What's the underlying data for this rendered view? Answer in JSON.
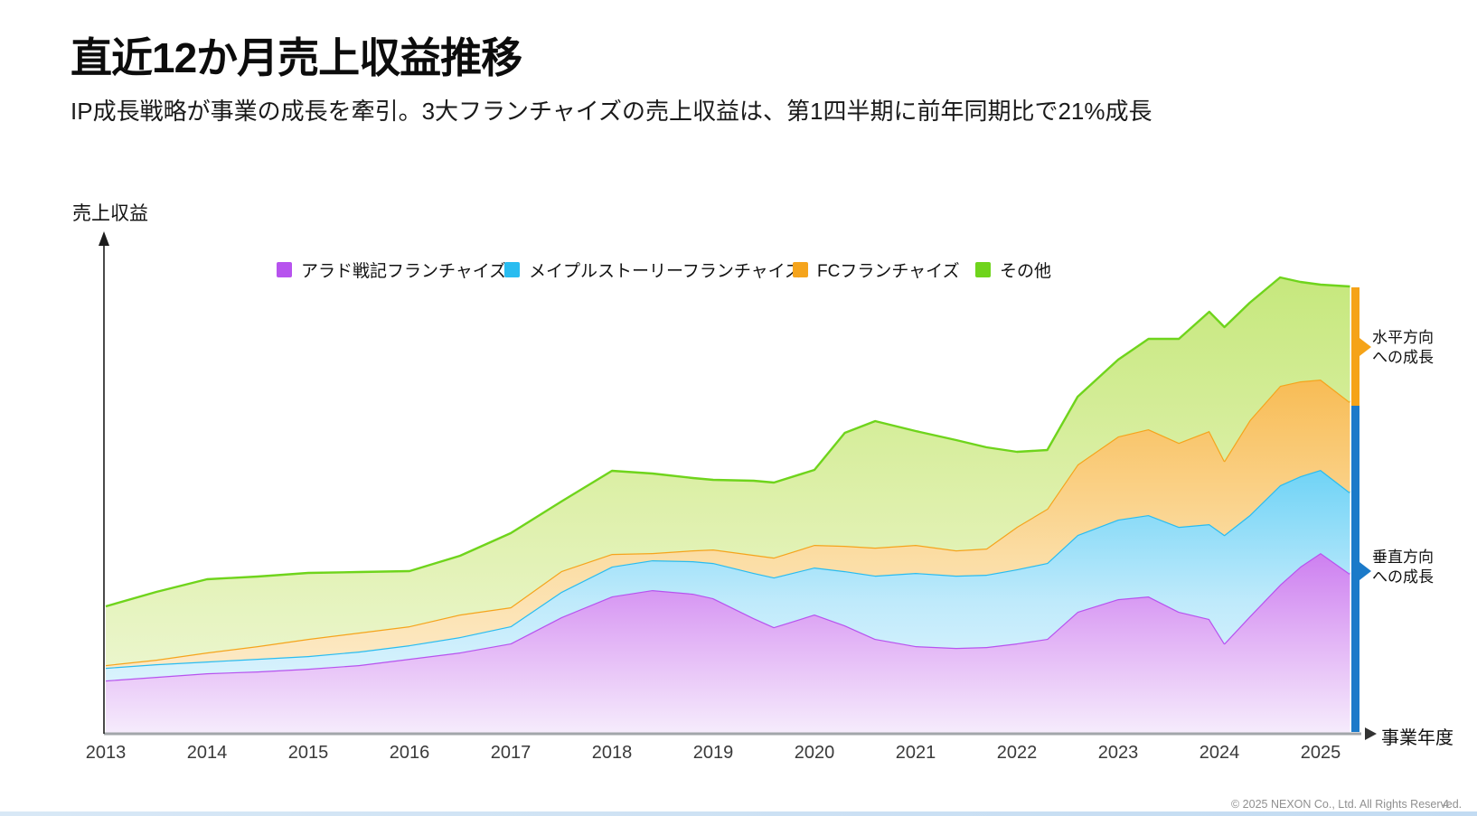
{
  "slide": {
    "title": "直近12か月売上収益推移",
    "subtitle": "IP成長戦略が事業の成長を牽引。3大フランチャイズの売上収益は、第1四半期に前年同期比で21%成長",
    "footer": {
      "copyright": "© 2025 NEXON Co., Ltd. All Rights Reserved.",
      "page_number": "4"
    }
  },
  "chart_data": {
    "type": "area",
    "stacked": true,
    "title": "",
    "xlabel": "事業年度",
    "ylabel": "売上収益",
    "legend_position": "top",
    "grid": false,
    "y_axis_numeric_labels": false,
    "value_unit": "relative revenue height (no numeric y-axis shown in chart)",
    "x_ticks": [
      "2013",
      "2014",
      "2015",
      "2016",
      "2017",
      "2018",
      "2019",
      "2020",
      "2021",
      "2022",
      "2023",
      "2024",
      "2025"
    ],
    "x_range": [
      2013.0,
      2025.29
    ],
    "x": [
      2013.0,
      2013.5,
      2014.0,
      2014.5,
      2015.0,
      2015.5,
      2016.0,
      2016.5,
      2017.0,
      2017.5,
      2018.0,
      2018.4,
      2018.8,
      2019.0,
      2019.4,
      2019.6,
      2020.0,
      2020.3,
      2020.6,
      2021.0,
      2021.4,
      2021.7,
      2022.0,
      2022.3,
      2022.6,
      2023.0,
      2023.3,
      2023.6,
      2023.9,
      2024.05,
      2024.3,
      2024.6,
      2024.8,
      2025.0,
      2025.29
    ],
    "series": [
      {
        "name": "アラド戦記フランチャイズ",
        "color": "#b753ee",
        "fill_top": "#cd7ff0",
        "fill_mid": "#e3b6f6",
        "fill_bottom": "#f6ecfc",
        "values": [
          59,
          63,
          67,
          69,
          72,
          76,
          83,
          90,
          100,
          129,
          152,
          159,
          155,
          150,
          128,
          118,
          132,
          120,
          105,
          97,
          95,
          96,
          100,
          105,
          135,
          149,
          152,
          135,
          127,
          100,
          130,
          165,
          185,
          200,
          177
        ]
      },
      {
        "name": "メイプルストーリーフランチャイズ",
        "color": "#29bcf0",
        "fill_top": "#6fd3f6",
        "fill_mid": "#bfeafb",
        "fill_bottom": "#ebf8fe",
        "values": [
          14,
          14,
          13,
          14,
          14,
          15,
          15,
          17,
          19,
          28,
          33,
          33,
          36,
          39,
          50,
          55,
          52,
          60,
          70,
          81,
          80,
          80,
          82,
          84,
          85,
          88,
          90,
          94,
          105,
          120,
          112,
          110,
          100,
          92,
          90
        ]
      },
      {
        "name": "FCフランチャイズ",
        "color": "#f5a41c",
        "fill_top": "#f8bc55",
        "fill_mid": "#fbdda4",
        "fill_bottom": "#fdf1d9",
        "values": [
          3,
          5,
          10,
          14,
          19,
          21,
          21,
          25,
          21,
          23,
          14,
          8,
          12,
          15,
          20,
          22,
          25,
          28,
          31,
          31,
          28,
          29,
          47,
          60,
          78,
          92,
          95,
          93,
          103,
          82,
          105,
          110,
          105,
          100,
          100
        ]
      },
      {
        "name": "その他",
        "color": "#6fd41c",
        "fill_top": "#c6e87d",
        "fill_mid": "#def0ab",
        "fill_bottom": "#f0f8d9",
        "values": [
          65,
          75,
          81,
          77,
          73,
          67,
          61,
          65,
          82,
          77,
          92,
          88,
          80,
          77,
          82,
          83,
          83,
          125,
          140,
          126,
          122,
          112,
          83,
          65,
          75,
          85,
          100,
          115,
          132,
          148,
          130,
          120,
          110,
          105,
          128
        ]
      }
    ],
    "annotations": [
      {
        "label": "水平方向への成長",
        "lines": [
          "水平方向",
          "への成長"
        ],
        "bar_color": "#f5a318",
        "bar_segment": "top (covers その他 band at right edge)"
      },
      {
        "label": "垂直方向への成長",
        "lines": [
          "垂直方向",
          "への成長"
        ],
        "bar_color": "#1b7ac9",
        "bar_segment": "bottom (covers 3 franchise bands at right edge)"
      }
    ]
  }
}
